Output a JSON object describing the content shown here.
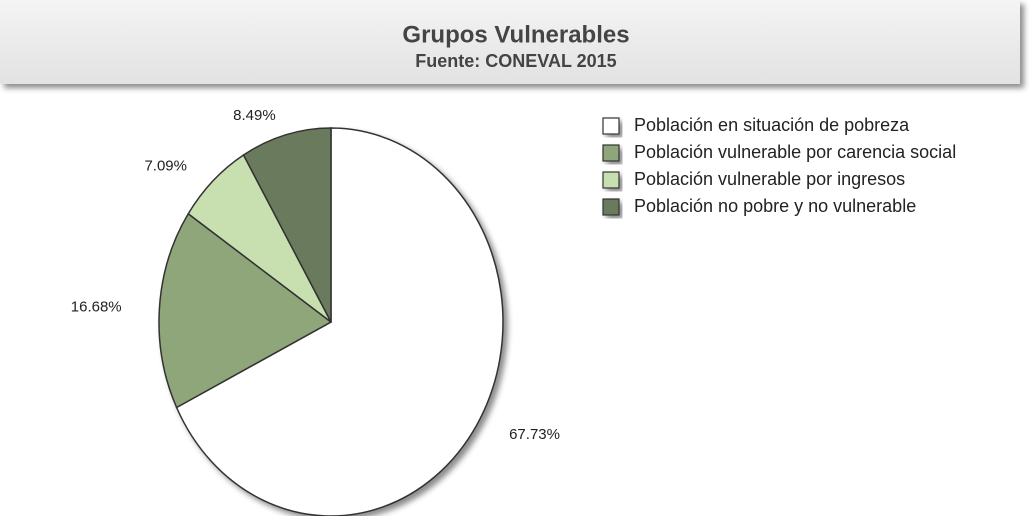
{
  "chart_data": {
    "type": "pie",
    "title": "Grupos Vulnerables",
    "subtitle": "Fuente: CONEVAL 2015",
    "categories": [
      "Población en situación de pobreza",
      "Población vulnerable por carencia social",
      "Población vulnerable por ingresos",
      "Población no pobre y no vulnerable"
    ],
    "values": [
      67.73,
      16.68,
      7.09,
      8.49
    ],
    "value_labels": [
      "67.73%",
      "16.68%",
      "7.09%",
      "8.49%"
    ],
    "colors": [
      "#ffffff",
      "#8fa57a",
      "#c8e0b0",
      "#6b7a5c"
    ]
  }
}
